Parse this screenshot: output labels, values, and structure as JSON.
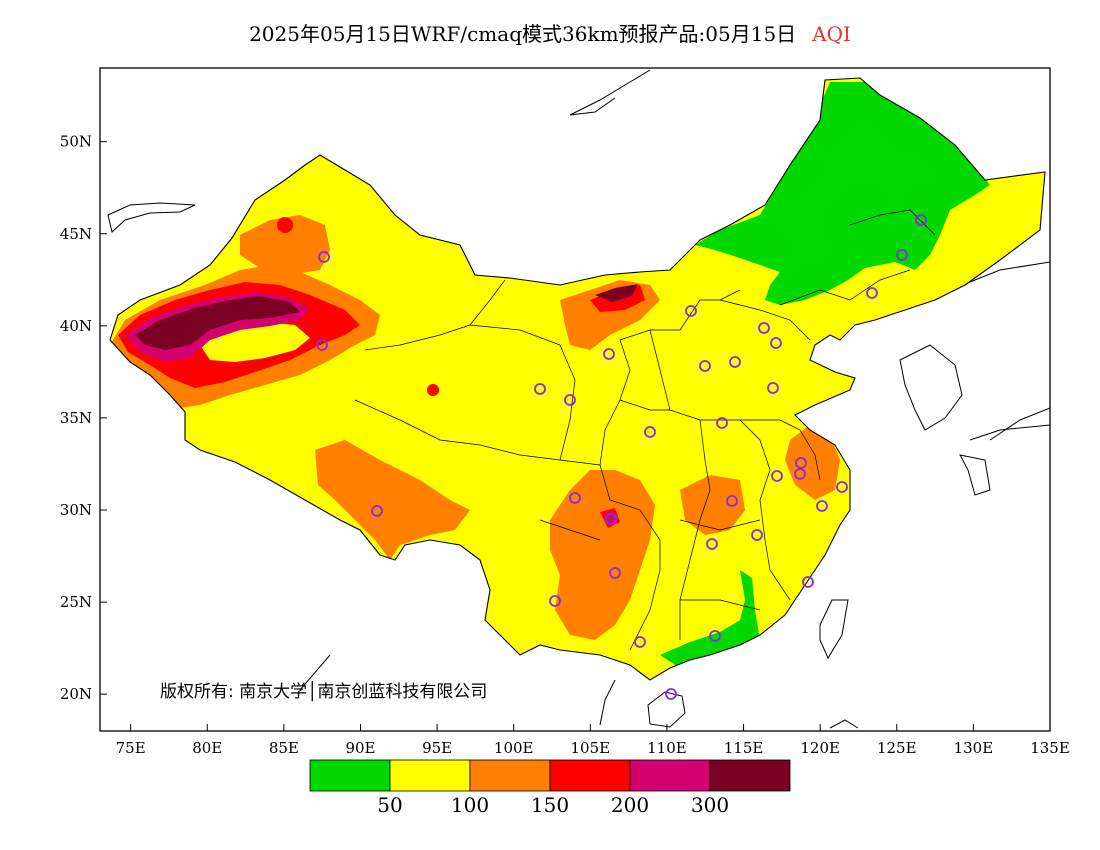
{
  "title": {
    "main": "2025年05月15日WRF/cmaq模式36km预报产品:05月15日",
    "variable": "AQI",
    "variable_color": "#e8362b"
  },
  "axes": {
    "x_ticks": [
      "75E",
      "80E",
      "85E",
      "90E",
      "95E",
      "100E",
      "105E",
      "110E",
      "115E",
      "120E",
      "125E",
      "130E",
      "135E"
    ],
    "x_values": [
      75,
      80,
      85,
      90,
      95,
      100,
      105,
      110,
      115,
      120,
      125,
      130,
      135
    ],
    "y_ticks": [
      "20N",
      "25N",
      "30N",
      "35N",
      "40N",
      "45N",
      "50N"
    ],
    "y_values": [
      20,
      25,
      30,
      35,
      40,
      45,
      50
    ],
    "lon_range": [
      73,
      135
    ],
    "lat_range": [
      18,
      54
    ]
  },
  "copyright": "版权所有: 南京大学│南京创蓝科技有限公司",
  "legend": {
    "colors": [
      "#00d800",
      "#ffff00",
      "#ff7f00",
      "#ff0000",
      "#d4006e",
      "#7a0024"
    ],
    "labels": [
      "50",
      "100",
      "150",
      "200",
      "300"
    ]
  },
  "colors": {
    "good": "#00d800",
    "moderate": "#ffff00",
    "unhealthy_sensitive": "#ff7f00",
    "unhealthy": "#ff0000",
    "very_unhealthy": "#d4006e",
    "hazardous": "#7a0024",
    "station_marker": "#8a2be2"
  }
}
